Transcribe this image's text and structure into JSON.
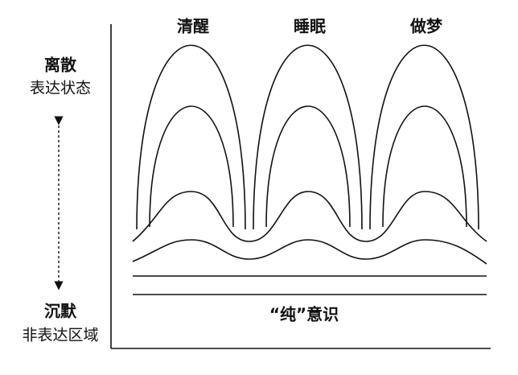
{
  "states": [
    "清醒",
    "睡眠",
    "做梦"
  ],
  "top_label": {
    "title": "离散",
    "subtitle": "表达状态"
  },
  "bottom_label": {
    "title": "沉默",
    "subtitle": "非表达区域"
  },
  "base_label": "“纯”意识"
}
